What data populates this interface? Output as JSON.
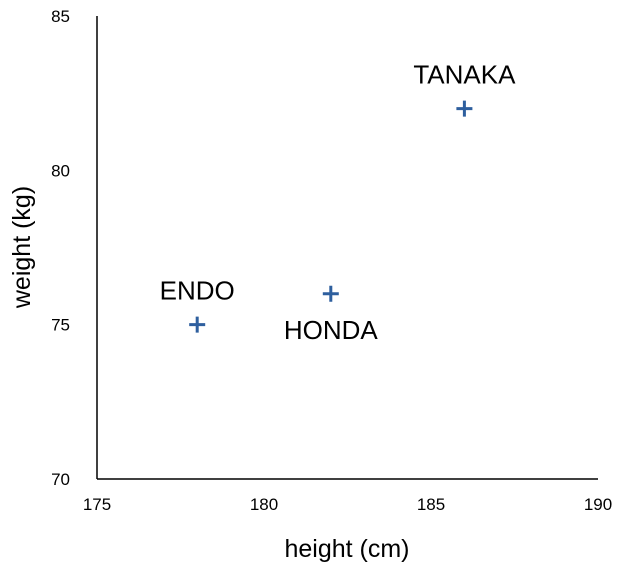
{
  "chart_data": {
    "type": "scatter",
    "xlabel": "height (cm)",
    "ylabel": "weight (kg)",
    "xlim": [
      175,
      190
    ],
    "ylim": [
      70,
      85
    ],
    "x_ticks": [
      "175",
      "180",
      "185",
      "190"
    ],
    "y_ticks": [
      "70",
      "75",
      "80",
      "85"
    ],
    "grid": false,
    "marker": "plus",
    "marker_color": "#2e5f9e",
    "points": [
      {
        "label": "TANAKA",
        "x": 186,
        "y": 82,
        "label_position": "above"
      },
      {
        "label": "ENDO",
        "x": 178,
        "y": 75,
        "label_position": "above"
      },
      {
        "label": "HONDA",
        "x": 182,
        "y": 76,
        "label_position": "below"
      }
    ]
  }
}
